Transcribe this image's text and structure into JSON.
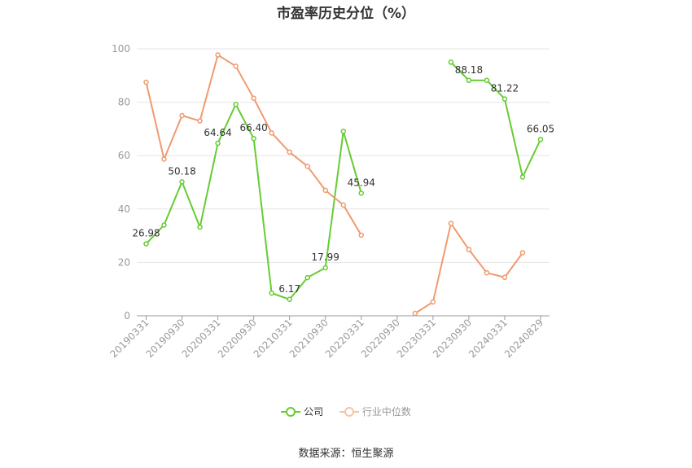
{
  "chart_data": {
    "type": "line",
    "title": "市盈率历史分位（%）",
    "categories": [
      "20190331",
      "20190630",
      "20190930",
      "20191231",
      "20200331",
      "20200630",
      "20200930",
      "20201231",
      "20210331",
      "20210630",
      "20210930",
      "20211231",
      "20220331",
      "20220630",
      "20220930",
      "20221231",
      "20230331",
      "20230630",
      "20230930",
      "20231231",
      "20240331",
      "20240630",
      "20240829"
    ],
    "tick_labels": [
      "20190331",
      "20190930",
      "20200331",
      "20200930",
      "20210331",
      "20210930",
      "20220331",
      "20220930",
      "20230331",
      "20230930",
      "20240331",
      "20240829"
    ],
    "ylim": [
      0,
      100
    ],
    "yticks": [
      0,
      20,
      40,
      60,
      80,
      100
    ],
    "grid": true,
    "legend_position": "bottom",
    "series": [
      {
        "name": "公司",
        "color": "#66cc33",
        "values": [
          26.98,
          34,
          50.18,
          33.2,
          64.64,
          79.2,
          66.4,
          8.5,
          6.17,
          14.3,
          17.99,
          69.1,
          45.94,
          null,
          null,
          null,
          null,
          95,
          88.18,
          88.2,
          81.22,
          52,
          66.05
        ],
        "labels": [
          "26.98",
          null,
          "50.18",
          null,
          "64.64",
          null,
          "66.40",
          null,
          "6.17",
          null,
          "17.99",
          null,
          "45.94",
          null,
          null,
          null,
          null,
          null,
          "88.18",
          null,
          "81.22",
          null,
          "66.05"
        ]
      },
      {
        "name": "行业中位数",
        "color": "#f09a6e",
        "values": [
          87.5,
          58.7,
          75,
          73,
          97.7,
          93.5,
          81.5,
          68.5,
          61.3,
          56,
          47,
          41.5,
          30.2,
          null,
          null,
          0.9,
          5.2,
          34.6,
          24.8,
          16.1,
          14.4,
          23.6,
          null
        ]
      }
    ]
  },
  "source": "数据来源：恒生聚源"
}
